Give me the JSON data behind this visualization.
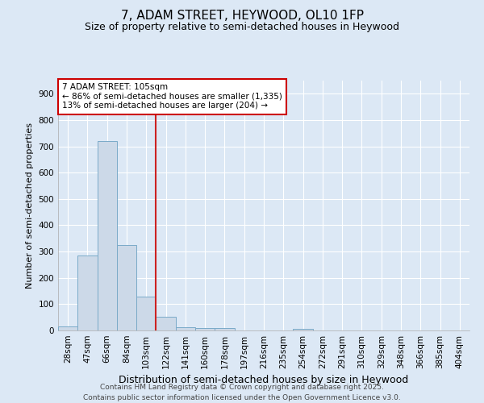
{
  "title": "7, ADAM STREET, HEYWOOD, OL10 1FP",
  "subtitle": "Size of property relative to semi-detached houses in Heywood",
  "xlabel": "Distribution of semi-detached houses by size in Heywood",
  "ylabel": "Number of semi-detached properties",
  "categories": [
    "28sqm",
    "47sqm",
    "66sqm",
    "84sqm",
    "103sqm",
    "122sqm",
    "141sqm",
    "160sqm",
    "178sqm",
    "197sqm",
    "216sqm",
    "235sqm",
    "254sqm",
    "272sqm",
    "291sqm",
    "310sqm",
    "329sqm",
    "348sqm",
    "366sqm",
    "385sqm",
    "404sqm"
  ],
  "values": [
    15,
    285,
    720,
    325,
    130,
    52,
    12,
    10,
    8,
    0,
    0,
    0,
    7,
    0,
    0,
    0,
    0,
    0,
    0,
    0,
    0
  ],
  "bar_color": "#ccd9e8",
  "bar_edge_color": "#7aaac8",
  "red_line_x": 4.5,
  "annotation_title": "7 ADAM STREET: 105sqm",
  "annotation_line1": "← 86% of semi-detached houses are smaller (1,335)",
  "annotation_line2": "13% of semi-detached houses are larger (204) →",
  "annotation_box_color": "#ffffff",
  "annotation_box_edge": "#cc0000",
  "red_line_color": "#cc2222",
  "ylim": [
    0,
    950
  ],
  "yticks": [
    0,
    100,
    200,
    300,
    400,
    500,
    600,
    700,
    800,
    900
  ],
  "background_color": "#dce8f5",
  "grid_color": "#ffffff",
  "footer1": "Contains HM Land Registry data © Crown copyright and database right 2025.",
  "footer2": "Contains public sector information licensed under the Open Government Licence v3.0.",
  "title_fontsize": 11,
  "subtitle_fontsize": 9,
  "axis_fontsize": 7.5,
  "ylabel_fontsize": 8,
  "xlabel_fontsize": 9,
  "annotation_fontsize": 7.5,
  "footer_fontsize": 6.5
}
